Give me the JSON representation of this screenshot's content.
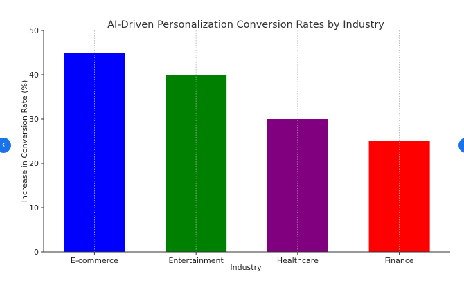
{
  "chart_data": {
    "type": "bar",
    "title": "AI-Driven Personalization Conversion Rates by Industry",
    "xlabel": "Industry",
    "ylabel": "Increase in Conversion Rate (%)",
    "categories": [
      "E-commerce",
      "Entertainment",
      "Healthcare",
      "Finance"
    ],
    "values": [
      45,
      40,
      30,
      25
    ],
    "colors": [
      "#0000ff",
      "#008000",
      "#800080",
      "#ff0000"
    ],
    "ylim": [
      0,
      50
    ],
    "yticks": [
      0,
      10,
      20,
      30,
      40,
      50
    ],
    "grid": "vertical-dotted"
  },
  "nav": {
    "prev_icon": "chevron-left-icon",
    "next_icon": "chevron-right-icon",
    "prev_glyph": "‹",
    "next_glyph": "›"
  }
}
